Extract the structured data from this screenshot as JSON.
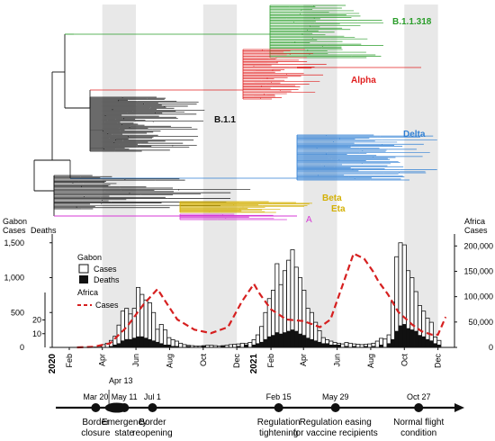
{
  "colors": {
    "green": "#2a9d2a",
    "red": "#e02020",
    "black": "#111111",
    "blue": "#2f7fd4",
    "gold": "#d4b106",
    "magenta": "#d63ad6",
    "africa_line": "#d62020",
    "shade": "#e8e8e8"
  },
  "tree": {
    "labels": {
      "b11318": "B.1.1.318",
      "alpha": "Alpha",
      "b11": "B.1.1",
      "delta": "Delta",
      "beta": "Beta",
      "eta": "Eta",
      "a": "A"
    }
  },
  "chart_data": {
    "type": "bar",
    "title": "",
    "x_start": "2020-01-01",
    "x_end": "2021-12-31",
    "x_ticks": [
      {
        "date": "2020-02-01",
        "label": "Feb"
      },
      {
        "date": "2020-04-01",
        "label": "Apr"
      },
      {
        "date": "2020-06-01",
        "label": "Jun"
      },
      {
        "date": "2020-08-01",
        "label": "Aug"
      },
      {
        "date": "2020-10-01",
        "label": "Oct"
      },
      {
        "date": "2020-12-01",
        "label": "Dec"
      },
      {
        "date": "2021-02-01",
        "label": "Feb"
      },
      {
        "date": "2021-04-01",
        "label": "Apr"
      },
      {
        "date": "2021-06-01",
        "label": "Jun"
      },
      {
        "date": "2021-08-01",
        "label": "Aug"
      },
      {
        "date": "2021-10-01",
        "label": "Oct"
      },
      {
        "date": "2021-12-01",
        "label": "Dec"
      }
    ],
    "year_labels": [
      {
        "date": "2020-01-01",
        "label": "2020"
      },
      {
        "date": "2021-01-01",
        "label": "2021"
      }
    ],
    "shaded_periods": [
      [
        "2020-04-01",
        "2020-06-01"
      ],
      [
        "2020-10-01",
        "2020-12-01"
      ],
      [
        "2021-04-01",
        "2021-06-01"
      ],
      [
        "2021-10-01",
        "2021-12-01"
      ]
    ],
    "left_axis": {
      "label_line1": "Gabon",
      "label_line2": "Cases",
      "ylim": [
        0,
        1600
      ],
      "ticks": [
        0,
        500,
        1000,
        1500
      ],
      "tick_labels": [
        "0",
        "500",
        "1,000",
        "1,500"
      ]
    },
    "deaths_axis": {
      "label": "Deaths",
      "ylim": [
        0,
        40
      ],
      "ticks": [
        10,
        20
      ],
      "tick_labels": [
        "10",
        "20"
      ]
    },
    "right_axis": {
      "label_line1": "Africa",
      "label_line2": "Cases",
      "ylim": [
        0,
        220000
      ],
      "ticks": [
        0,
        50000,
        100000,
        150000,
        200000
      ],
      "tick_labels": [
        "0",
        "50,000",
        "100,000",
        "150,000",
        "200,000"
      ]
    },
    "legend": {
      "title_gabon": "Gabon",
      "cases": "Cases",
      "deaths": "Deaths",
      "title_africa": "Africa",
      "africa_cases": "Cases"
    },
    "gabon_cases": [
      [
        "2020-03-20",
        5
      ],
      [
        "2020-03-27",
        15
      ],
      [
        "2020-04-03",
        40
      ],
      [
        "2020-04-10",
        60
      ],
      [
        "2020-04-17",
        100
      ],
      [
        "2020-04-24",
        160
      ],
      [
        "2020-05-01",
        320
      ],
      [
        "2020-05-08",
        520
      ],
      [
        "2020-05-15",
        560
      ],
      [
        "2020-05-22",
        480
      ],
      [
        "2020-05-29",
        560
      ],
      [
        "2020-06-05",
        860
      ],
      [
        "2020-06-12",
        760
      ],
      [
        "2020-06-19",
        680
      ],
      [
        "2020-06-26",
        640
      ],
      [
        "2020-07-03",
        500
      ],
      [
        "2020-07-10",
        260
      ],
      [
        "2020-07-17",
        330
      ],
      [
        "2020-07-24",
        250
      ],
      [
        "2020-07-31",
        140
      ],
      [
        "2020-08-07",
        110
      ],
      [
        "2020-08-14",
        90
      ],
      [
        "2020-08-21",
        60
      ],
      [
        "2020-08-28",
        40
      ],
      [
        "2020-09-04",
        30
      ],
      [
        "2020-09-11",
        25
      ],
      [
        "2020-09-18",
        20
      ],
      [
        "2020-09-25",
        20
      ],
      [
        "2020-10-02",
        25
      ],
      [
        "2020-10-09",
        30
      ],
      [
        "2020-10-16",
        30
      ],
      [
        "2020-10-23",
        25
      ],
      [
        "2020-10-30",
        20
      ],
      [
        "2020-11-06",
        25
      ],
      [
        "2020-11-13",
        30
      ],
      [
        "2020-11-20",
        40
      ],
      [
        "2020-11-27",
        45
      ],
      [
        "2020-12-04",
        50
      ],
      [
        "2020-12-11",
        60
      ],
      [
        "2020-12-18",
        55
      ],
      [
        "2020-12-25",
        70
      ],
      [
        "2021-01-01",
        110
      ],
      [
        "2021-01-08",
        180
      ],
      [
        "2021-01-15",
        300
      ],
      [
        "2021-01-22",
        500
      ],
      [
        "2021-01-29",
        700
      ],
      [
        "2021-02-05",
        820
      ],
      [
        "2021-02-12",
        1200
      ],
      [
        "2021-02-19",
        900
      ],
      [
        "2021-02-26",
        1100
      ],
      [
        "2021-03-05",
        1250
      ],
      [
        "2021-03-12",
        1400
      ],
      [
        "2021-03-19",
        1150
      ],
      [
        "2021-03-26",
        1000
      ],
      [
        "2021-04-02",
        820
      ],
      [
        "2021-04-09",
        560
      ],
      [
        "2021-04-16",
        500
      ],
      [
        "2021-04-23",
        360
      ],
      [
        "2021-04-30",
        240
      ],
      [
        "2021-05-07",
        140
      ],
      [
        "2021-05-14",
        110
      ],
      [
        "2021-05-21",
        90
      ],
      [
        "2021-05-28",
        70
      ],
      [
        "2021-06-04",
        60
      ],
      [
        "2021-06-11",
        50
      ],
      [
        "2021-06-18",
        70
      ],
      [
        "2021-06-25",
        60
      ],
      [
        "2021-07-02",
        50
      ],
      [
        "2021-07-09",
        45
      ],
      [
        "2021-07-16",
        40
      ],
      [
        "2021-07-23",
        45
      ],
      [
        "2021-07-30",
        50
      ],
      [
        "2021-08-06",
        60
      ],
      [
        "2021-08-13",
        90
      ],
      [
        "2021-08-20",
        130
      ],
      [
        "2021-08-27",
        120
      ],
      [
        "2021-09-03",
        180
      ],
      [
        "2021-09-10",
        650
      ],
      [
        "2021-09-17",
        1300
      ],
      [
        "2021-09-24",
        1500
      ],
      [
        "2021-10-01",
        1470
      ],
      [
        "2021-10-08",
        1100
      ],
      [
        "2021-10-15",
        1000
      ],
      [
        "2021-10-22",
        800
      ],
      [
        "2021-10-29",
        600
      ],
      [
        "2021-11-05",
        520
      ],
      [
        "2021-11-12",
        420
      ],
      [
        "2021-11-19",
        360
      ],
      [
        "2021-11-26",
        150
      ],
      [
        "2021-12-03",
        100
      ]
    ],
    "gabon_deaths": [
      [
        "2020-04-17",
        1
      ],
      [
        "2020-04-24",
        2
      ],
      [
        "2020-05-01",
        3
      ],
      [
        "2020-05-08",
        5
      ],
      [
        "2020-05-15",
        6
      ],
      [
        "2020-05-22",
        6
      ],
      [
        "2020-05-29",
        7
      ],
      [
        "2020-06-05",
        8
      ],
      [
        "2020-06-12",
        8
      ],
      [
        "2020-06-19",
        7
      ],
      [
        "2020-06-26",
        6
      ],
      [
        "2020-07-03",
        5
      ],
      [
        "2020-07-10",
        4
      ],
      [
        "2020-07-17",
        3
      ],
      [
        "2020-07-24",
        2
      ],
      [
        "2020-07-31",
        2
      ],
      [
        "2020-08-07",
        1
      ],
      [
        "2020-08-14",
        1
      ],
      [
        "2020-09-04",
        1
      ],
      [
        "2020-10-02",
        1
      ],
      [
        "2020-11-06",
        1
      ],
      [
        "2020-12-04",
        1
      ],
      [
        "2020-12-18",
        2
      ],
      [
        "2021-01-01",
        2
      ],
      [
        "2021-01-08",
        3
      ],
      [
        "2021-01-15",
        4
      ],
      [
        "2021-01-22",
        6
      ],
      [
        "2021-01-29",
        8
      ],
      [
        "2021-02-05",
        9
      ],
      [
        "2021-02-12",
        11
      ],
      [
        "2021-02-19",
        10
      ],
      [
        "2021-02-26",
        11
      ],
      [
        "2021-03-05",
        12
      ],
      [
        "2021-03-12",
        13
      ],
      [
        "2021-03-19",
        12
      ],
      [
        "2021-03-26",
        10
      ],
      [
        "2021-04-02",
        9
      ],
      [
        "2021-04-09",
        7
      ],
      [
        "2021-04-16",
        6
      ],
      [
        "2021-04-23",
        5
      ],
      [
        "2021-04-30",
        4
      ],
      [
        "2021-05-07",
        3
      ],
      [
        "2021-05-14",
        3
      ],
      [
        "2021-05-21",
        2
      ],
      [
        "2021-05-28",
        2
      ],
      [
        "2021-06-04",
        2
      ],
      [
        "2021-06-18",
        1
      ],
      [
        "2021-07-02",
        1
      ],
      [
        "2021-07-23",
        1
      ],
      [
        "2021-08-06",
        1
      ],
      [
        "2021-08-20",
        2
      ],
      [
        "2021-09-03",
        3
      ],
      [
        "2021-09-10",
        6
      ],
      [
        "2021-09-17",
        12
      ],
      [
        "2021-09-24",
        16
      ],
      [
        "2021-10-01",
        17
      ],
      [
        "2021-10-08",
        14
      ],
      [
        "2021-10-15",
        13
      ],
      [
        "2021-10-22",
        12
      ],
      [
        "2021-10-29",
        9
      ],
      [
        "2021-11-05",
        8
      ],
      [
        "2021-11-12",
        6
      ],
      [
        "2021-11-19",
        5
      ],
      [
        "2021-11-26",
        3
      ],
      [
        "2021-12-03",
        2
      ]
    ],
    "africa_cases": [
      [
        "2020-02-15",
        0
      ],
      [
        "2020-03-15",
        1000
      ],
      [
        "2020-04-15",
        8000
      ],
      [
        "2020-05-15",
        40000
      ],
      [
        "2020-06-15",
        85000
      ],
      [
        "2020-07-10",
        115000
      ],
      [
        "2020-07-25",
        90000
      ],
      [
        "2020-08-15",
        55000
      ],
      [
        "2020-09-15",
        35000
      ],
      [
        "2020-10-15",
        28000
      ],
      [
        "2020-11-15",
        40000
      ],
      [
        "2020-12-10",
        90000
      ],
      [
        "2021-01-01",
        125000
      ],
      [
        "2021-01-12",
        105000
      ],
      [
        "2021-02-01",
        75000
      ],
      [
        "2021-03-01",
        55000
      ],
      [
        "2021-04-01",
        52000
      ],
      [
        "2021-05-01",
        40000
      ],
      [
        "2021-05-20",
        55000
      ],
      [
        "2021-06-10",
        120000
      ],
      [
        "2021-07-01",
        185000
      ],
      [
        "2021-07-20",
        175000
      ],
      [
        "2021-08-05",
        150000
      ],
      [
        "2021-08-15",
        130000
      ],
      [
        "2021-09-01",
        105000
      ],
      [
        "2021-09-20",
        70000
      ],
      [
        "2021-10-15",
        45000
      ],
      [
        "2021-11-01",
        32000
      ],
      [
        "2021-11-20",
        25000
      ],
      [
        "2021-12-01",
        25000
      ],
      [
        "2021-12-15",
        60000
      ]
    ]
  },
  "timeline": {
    "events": [
      {
        "date": "2020-03-20",
        "date_label": "Mar 20",
        "line1": "Border",
        "line2": "closure"
      },
      {
        "date": "2020-05-11",
        "date_label": "May 11",
        "line1": "Emergency",
        "line2": "state",
        "extra_label": "Apr 13"
      },
      {
        "date": "2020-07-01",
        "date_label": "Jul 1",
        "line1": "Border",
        "line2": "reopening"
      },
      {
        "date": "2021-02-15",
        "date_label": "Feb 15",
        "line1": "Regulation",
        "line2": "tightening"
      },
      {
        "date": "2021-05-29",
        "date_label": "May 29",
        "line1": "Regulation easing",
        "line2": "for vaccine recipients"
      },
      {
        "date": "2021-10-27",
        "date_label": "Oct 27",
        "line1": "Normal flight",
        "line2": "condition"
      }
    ]
  }
}
